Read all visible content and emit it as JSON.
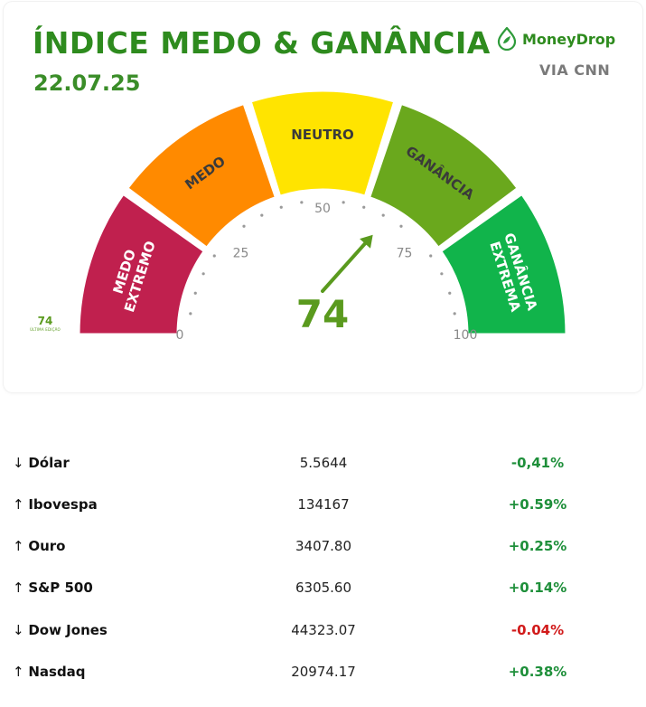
{
  "header": {
    "title": "ÍNDICE MEDO & GANÂNCIA",
    "date": "22.07.25",
    "brand_name": "MoneyDrop",
    "brand_sub": "VIA CNN",
    "brand_icon": "drop-leaf-icon"
  },
  "gauge": {
    "value": 74,
    "scale_min": 0,
    "scale_max": 100,
    "ticks": [
      "0",
      "25",
      "50",
      "75",
      "100"
    ],
    "segments": [
      {
        "label_lines": [
          "MEDO",
          "EXTREMO"
        ],
        "color": "#c0204e"
      },
      {
        "label_lines": [
          "MEDO"
        ],
        "color": "#ff8a00"
      },
      {
        "label_lines": [
          "NEUTRO"
        ],
        "color": "#ffe400"
      },
      {
        "label_lines": [
          "GANÂNCIA"
        ],
        "color": "#6aa81d"
      },
      {
        "label_lines": [
          "GANÂNCIA",
          "EXTREMA"
        ],
        "color": "#11b44b"
      }
    ],
    "value_color": "#5a9a1e",
    "last_edition_value": "74",
    "last_edition_label": "ÚLTIMA EDIÇÃO"
  },
  "markets": [
    {
      "arrow": "↓",
      "name": "Dólar",
      "value": "5.5644",
      "change": "-0,41%",
      "change_color": "#1e8f3a"
    },
    {
      "arrow": "↑",
      "name": "Ibovespa",
      "value": "134167",
      "change": "+0.59%",
      "change_color": "#1e8f3a"
    },
    {
      "arrow": "↑",
      "name": "Ouro",
      "value": "3407.80",
      "change": "+0.25%",
      "change_color": "#1e8f3a"
    },
    {
      "arrow": "↑",
      "name": "S&P 500",
      "value": "6305.60",
      "change": "+0.14%",
      "change_color": "#1e8f3a"
    },
    {
      "arrow": "↓",
      "name": "Dow Jones",
      "value": "44323.07",
      "change": "-0.04%",
      "change_color": "#d11a1a"
    },
    {
      "arrow": "↑",
      "name": "Nasdaq",
      "value": "20974.17",
      "change": "+0.38%",
      "change_color": "#1e8f3a"
    }
  ]
}
